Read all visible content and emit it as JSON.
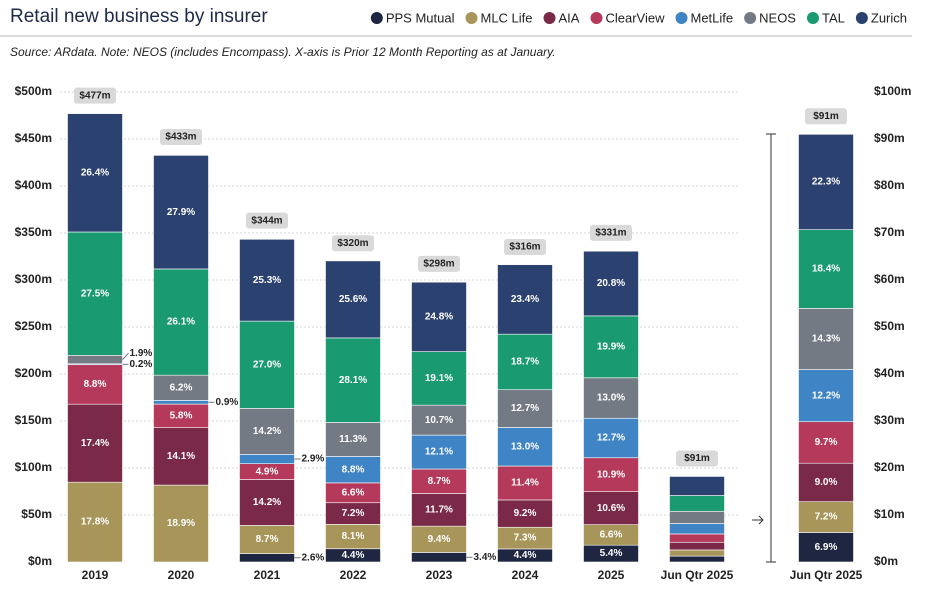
{
  "chart_data": [
    {
      "type": "bar",
      "stacked": true,
      "title": "Retail new business by insurer",
      "subtitle": "Source: ARdata.  Note: NEOS (includes Encompass). X-axis is Prior 12 Month Reporting as at January.",
      "categories": [
        "2019",
        "2020",
        "2021",
        "2022",
        "2023",
        "2024",
        "2025",
        "Jun Qtr 2025"
      ],
      "totals": {
        "values": [
          477,
          433,
          344,
          320,
          298,
          316,
          331,
          91
        ],
        "value_labels": [
          "$477m",
          "$433m",
          "$344m",
          "$320m",
          "$298m",
          "$316m",
          "$331m",
          "$91m"
        ]
      },
      "series": [
        {
          "name": "PPS Mutual",
          "color": "#1e2642",
          "values": [
            null,
            null,
            2.6,
            4.4,
            3.4,
            4.4,
            5.4,
            6.9
          ],
          "value_labels": [
            null,
            null,
            "2.6%",
            "4.4%",
            "3.4%",
            "4.4%",
            "5.4%",
            null
          ]
        },
        {
          "name": "MLC Life",
          "color": "#a8955a",
          "values": [
            17.8,
            18.9,
            8.7,
            8.1,
            9.4,
            7.3,
            6.6,
            7.2
          ],
          "value_labels": [
            "17.8%",
            "18.9%",
            "8.7%",
            "8.1%",
            "9.4%",
            "7.3%",
            "6.6%",
            null
          ]
        },
        {
          "name": "AIA",
          "color": "#7a2a48",
          "values": [
            17.4,
            14.1,
            14.2,
            7.2,
            11.7,
            9.2,
            10.6,
            9.0
          ],
          "value_labels": [
            "17.4%",
            "14.1%",
            "14.2%",
            "7.2%",
            "11.7%",
            "9.2%",
            "10.6%",
            null
          ]
        },
        {
          "name": "ClearView",
          "color": "#b5395b",
          "values": [
            8.8,
            5.8,
            4.9,
            6.6,
            8.7,
            11.4,
            10.9,
            9.7
          ],
          "value_labels": [
            "8.8%",
            "5.8%",
            "4.9%",
            "6.6%",
            "8.7%",
            "11.4%",
            "10.9%",
            null
          ]
        },
        {
          "name": "MetLife",
          "color": "#3f84c4",
          "values": [
            0.2,
            0.9,
            2.9,
            8.8,
            12.1,
            13.0,
            12.7,
            12.2
          ],
          "value_labels": [
            "0.2%",
            "0.9%",
            "2.9%",
            "8.8%",
            "12.1%",
            "13.0%",
            "12.7%",
            null
          ]
        },
        {
          "name": "NEOS",
          "color": "#737a84",
          "values": [
            1.9,
            6.2,
            14.2,
            11.3,
            10.7,
            12.7,
            13.0,
            14.3
          ],
          "value_labels": [
            "1.9%",
            "6.2%",
            "14.2%",
            "11.3%",
            "10.7%",
            "12.7%",
            "13.0%",
            null
          ]
        },
        {
          "name": "TAL",
          "color": "#1a9a70",
          "values": [
            27.5,
            26.1,
            27.0,
            28.1,
            19.1,
            18.7,
            19.9,
            18.4
          ],
          "value_labels": [
            "27.5%",
            "26.1%",
            "27.0%",
            "28.1%",
            "19.1%",
            "18.7%",
            "19.9%",
            null
          ]
        },
        {
          "name": "Zurich",
          "color": "#2b4170",
          "values": [
            26.4,
            27.9,
            25.3,
            25.6,
            24.8,
            23.4,
            20.8,
            22.3
          ],
          "value_labels": [
            "26.4%",
            "27.9%",
            "25.3%",
            "25.6%",
            "24.8%",
            "23.4%",
            "20.8%",
            null
          ]
        }
      ],
      "ylim": [
        0,
        500
      ],
      "yticks": [
        {
          "value": 0,
          "label": "$0m"
        },
        {
          "value": 50,
          "label": "$50m"
        },
        {
          "value": 100,
          "label": "$100m"
        },
        {
          "value": 150,
          "label": "$150m"
        },
        {
          "value": 200,
          "label": "$200m"
        },
        {
          "value": 250,
          "label": "$250m"
        },
        {
          "value": 300,
          "label": "$300m"
        },
        {
          "value": 350,
          "label": "$350m"
        },
        {
          "value": 400,
          "label": "$400m"
        },
        {
          "value": 450,
          "label": "$450m"
        },
        {
          "value": 500,
          "label": "$500m"
        }
      ],
      "grid": true,
      "legend": "top-right"
    },
    {
      "type": "bar",
      "stacked": true,
      "categories": [
        "Jun Qtr 2025"
      ],
      "totals": {
        "values": [
          91
        ],
        "value_labels": [
          "$91m"
        ]
      },
      "series": [
        {
          "color": "#1e2642",
          "values": [
            6.9
          ],
          "value_labels": [
            "6.9%"
          ]
        },
        {
          "color": "#a8955a",
          "values": [
            7.2
          ],
          "value_labels": [
            "7.2%"
          ]
        },
        {
          "color": "#7a2a48",
          "values": [
            9.0
          ],
          "value_labels": [
            "9.0%"
          ]
        },
        {
          "color": "#b5395b",
          "values": [
            9.7
          ],
          "value_labels": [
            "9.7%"
          ]
        },
        {
          "color": "#3f84c4",
          "values": [
            12.2
          ],
          "value_labels": [
            "12.2%"
          ]
        },
        {
          "color": "#737a84",
          "values": [
            14.3
          ],
          "value_labels": [
            "14.3%"
          ]
        },
        {
          "color": "#1a9a70",
          "values": [
            18.4
          ],
          "value_labels": [
            "18.4%"
          ]
        },
        {
          "color": "#2b4170",
          "values": [
            22.3
          ],
          "value_labels": [
            "22.3%"
          ]
        }
      ],
      "ylim": [
        0,
        100
      ],
      "yticks": [
        {
          "value": 0,
          "label": "$0m"
        },
        {
          "value": 10,
          "label": "$10m"
        },
        {
          "value": 20,
          "label": "$20m"
        },
        {
          "value": 30,
          "label": "$30m"
        },
        {
          "value": 40,
          "label": "$40m"
        },
        {
          "value": 50,
          "label": "$50m"
        },
        {
          "value": 60,
          "label": "$60m"
        },
        {
          "value": 70,
          "label": "$70m"
        },
        {
          "value": 80,
          "label": "$80m"
        },
        {
          "value": 90,
          "label": "$90m"
        },
        {
          "value": 100,
          "label": "$100m"
        }
      ],
      "grid": false
    }
  ]
}
